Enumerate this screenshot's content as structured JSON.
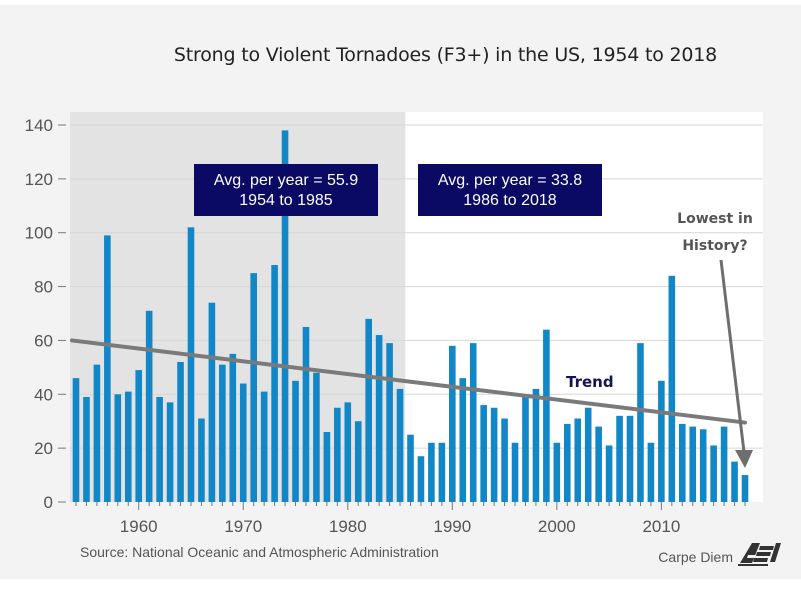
{
  "chart_data": {
    "type": "bar",
    "title": "Strong to Violent Tornadoes (F3+) in the US, 1954 to 2018",
    "xlabel": "",
    "ylabel": "",
    "ylim": [
      0,
      145
    ],
    "yticks": [
      0,
      20,
      40,
      60,
      80,
      100,
      120,
      140
    ],
    "xticks": [
      1960,
      1970,
      1980,
      1990,
      2000,
      2010
    ],
    "grid": true,
    "x": [
      1954,
      1955,
      1956,
      1957,
      1958,
      1959,
      1960,
      1961,
      1962,
      1963,
      1964,
      1965,
      1966,
      1967,
      1968,
      1969,
      1970,
      1971,
      1972,
      1973,
      1974,
      1975,
      1976,
      1977,
      1978,
      1979,
      1980,
      1981,
      1982,
      1983,
      1984,
      1985,
      1986,
      1987,
      1988,
      1989,
      1990,
      1991,
      1992,
      1993,
      1994,
      1995,
      1996,
      1997,
      1998,
      1999,
      2000,
      2001,
      2002,
      2003,
      2004,
      2005,
      2006,
      2007,
      2008,
      2009,
      2010,
      2011,
      2012,
      2013,
      2014,
      2015,
      2016,
      2017,
      2018
    ],
    "series": [
      {
        "name": "F3+ tornadoes",
        "color": "#1287c8",
        "values": [
          46,
          39,
          51,
          99,
          40,
          41,
          49,
          71,
          39,
          37,
          52,
          102,
          31,
          74,
          51,
          55,
          44,
          85,
          41,
          88,
          138,
          45,
          65,
          48,
          26,
          35,
          37,
          30,
          68,
          62,
          59,
          42,
          25,
          17,
          22,
          22,
          58,
          46,
          59,
          36,
          35,
          31,
          22,
          40,
          42,
          64,
          22,
          29,
          31,
          35,
          28,
          21,
          32,
          32,
          59,
          22,
          45,
          84,
          29,
          28,
          27,
          21,
          28,
          15,
          10
        ]
      }
    ],
    "trend": {
      "name": "Trend",
      "label": "Trend",
      "start": [
        1954,
        60
      ],
      "end": [
        2018,
        29.5
      ],
      "color": "#7a7a7a"
    },
    "shaded_period": {
      "from": 1953.5,
      "to": 1985.5,
      "color": "#e3e3e3"
    },
    "annotations": [
      {
        "lines": [
          "Avg. per year = 55.9",
          "1954 to 1985"
        ],
        "period": "1954-1985",
        "value": 55.9
      },
      {
        "lines": [
          "Avg. per year = 33.8",
          "1986 to 2018"
        ],
        "period": "1986-2018",
        "value": 33.8
      },
      {
        "lines": [
          "Lowest in",
          "History?"
        ],
        "points_to": 2018
      }
    ],
    "source": "Source: National Oceanic and Atmospheric Administration",
    "branding": {
      "text": "Carpe Diem",
      "logo": "AEI"
    }
  },
  "colors": {
    "annotation_box": "#0a0a64",
    "bar": "#1287c8",
    "trend": "#7a7a7a"
  }
}
